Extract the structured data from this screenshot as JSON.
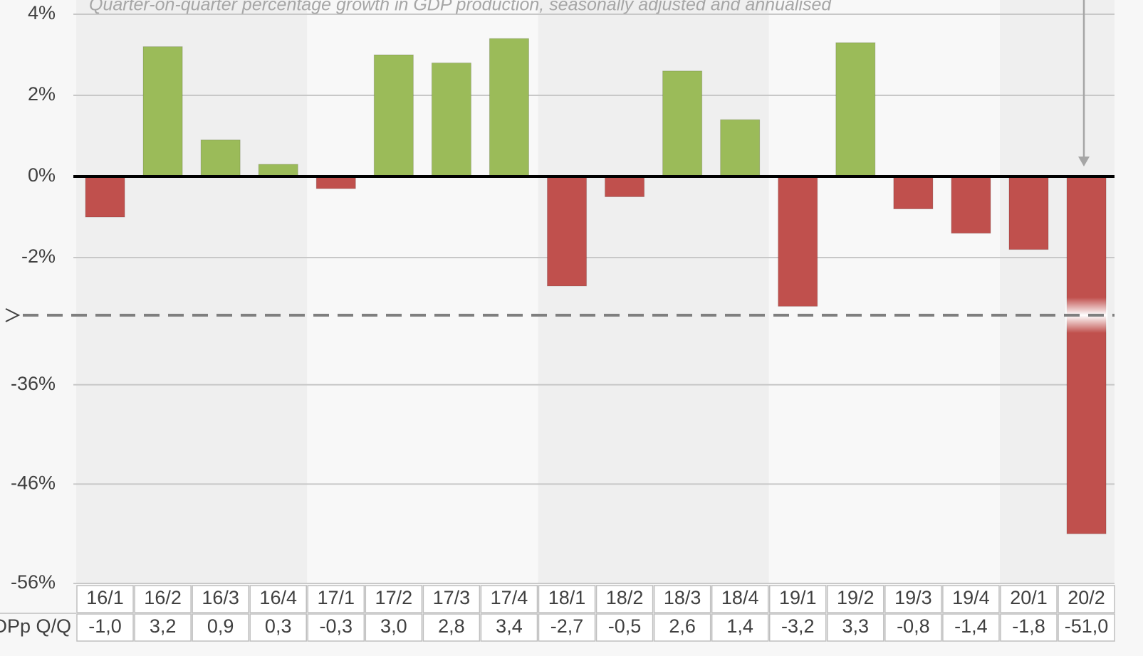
{
  "chart_data": {
    "type": "bar",
    "title": "Quarter-on-quarter percentage growth in GDP production, seasonally adjusted and annualised",
    "categories": [
      "16/1",
      "16/2",
      "16/3",
      "16/4",
      "17/1",
      "17/2",
      "17/3",
      "17/4",
      "18/1",
      "18/2",
      "18/3",
      "18/4",
      "19/1",
      "19/2",
      "19/3",
      "19/4",
      "20/1",
      "20/2"
    ],
    "series": [
      {
        "name": "DPp Q/Q",
        "values": [
          -1.0,
          3.2,
          0.9,
          0.3,
          -0.3,
          3.0,
          2.8,
          3.4,
          -2.7,
          -0.5,
          2.6,
          1.4,
          -3.2,
          3.3,
          -0.8,
          -1.4,
          -1.8,
          -51.0
        ],
        "value_labels": [
          "-1,0",
          "3,2",
          "0,9",
          "0,3",
          "-0,3",
          "3,0",
          "2,8",
          "3,4",
          "-2,7",
          "-0,5",
          "2,6",
          "1,4",
          "-3,2",
          "3,3",
          "-0,8",
          "-1,4",
          "-1,8",
          "-51,0"
        ]
      }
    ],
    "positive_color": "#9bbb59",
    "negative_color": "#c0504d",
    "axis_segments": [
      {
        "ylim": [
          -3.42,
          4
        ],
        "yticks": [
          {
            "value": 4,
            "label": "4%"
          },
          {
            "value": 2,
            "label": "2%"
          },
          {
            "value": 0,
            "label": "0%"
          },
          {
            "value": -2,
            "label": "-2%"
          }
        ]
      },
      {
        "ylim": [
          -56,
          -29
        ],
        "yticks": [
          {
            "value": -36,
            "label": "-36%"
          },
          {
            "value": -46,
            "label": "-46%"
          },
          {
            "value": -56,
            "label": "-56%"
          }
        ]
      }
    ],
    "grid": true
  }
}
